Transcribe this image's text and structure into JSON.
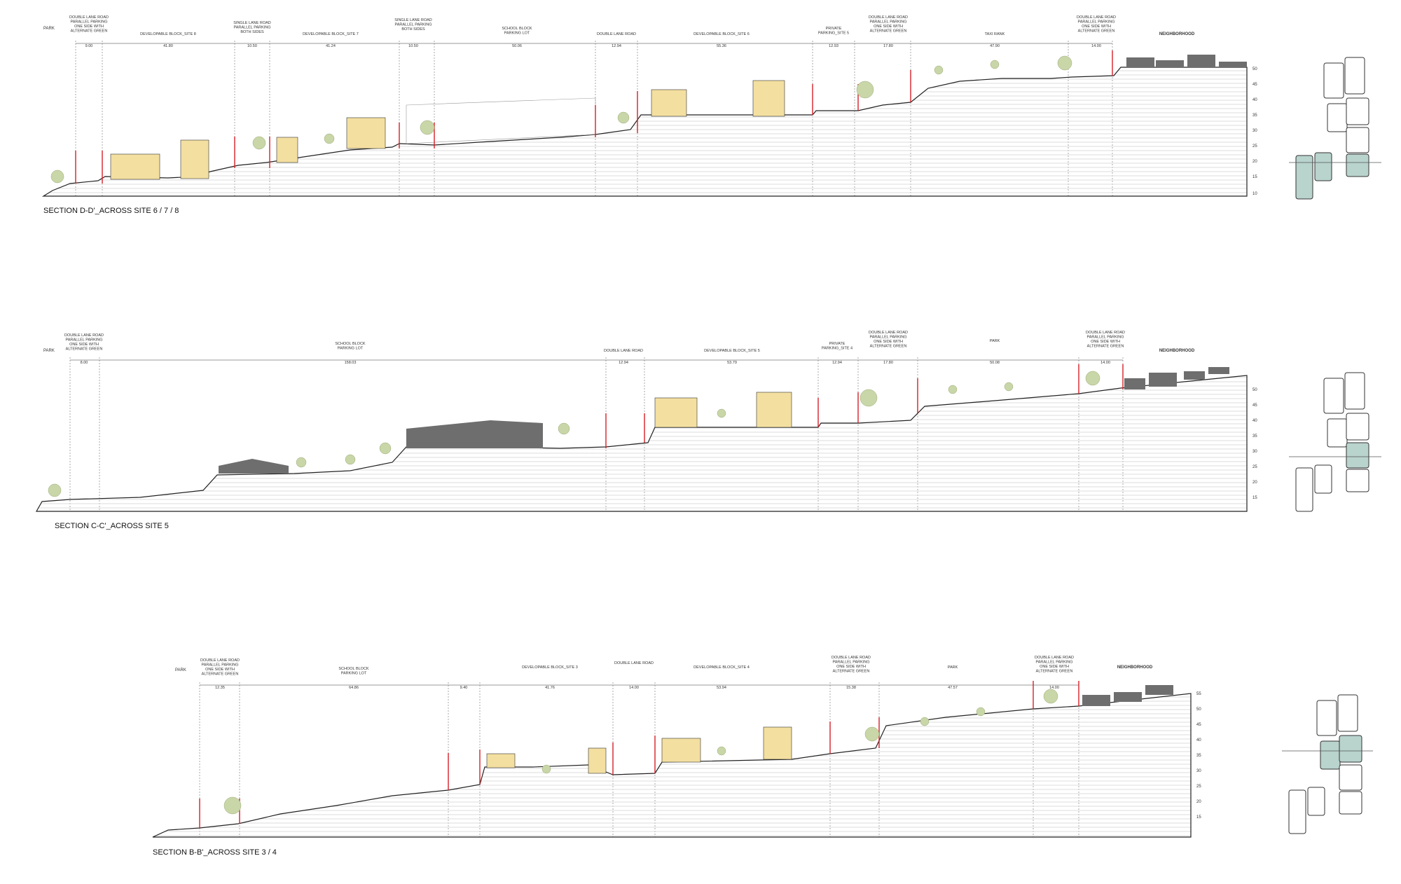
{
  "sections": [
    {
      "id": "D",
      "caption": "SECTION D-D'_ACROSS SITE 6 / 7 / 8",
      "top_labels": [
        {
          "text": "PARK"
        },
        {
          "text": "DOUBLE LANE ROAD\nPARALLEL PARKING\nONE SIDE WITH\nALTERNATE GREEN"
        },
        {
          "text": "DEVELOPABLE BLOCK_SITE 8"
        },
        {
          "text": "SINGLE LANE ROAD\nPARALLEL PARKING\nBOTH SIDES"
        },
        {
          "text": "DEVELOPABLE BLOCK_SITE 7"
        },
        {
          "text": "SINGLE LANE ROAD\nPARALLEL PARKING\nBOTH SIDES"
        },
        {
          "text": "SCHOOL BLOCK\nPARKING LOT"
        },
        {
          "text": "DOUBLE LANE ROAD"
        },
        {
          "text": "DEVELOPABLE BLOCK_SITE 6"
        },
        {
          "text": "PRIVATE\nPARKING_SITE 5"
        },
        {
          "text": "DOUBLE LANE ROAD\nPARALLEL PARKING\nONE SIDE WITH\nALTERNATE GREEN"
        },
        {
          "text": "TAXI RANK"
        },
        {
          "text": "DOUBLE LANE ROAD\nPARALLEL PARKING\nONE SIDE WITH\nALTERNATE GREEN"
        },
        {
          "text": "NEIGHBORHOOD"
        }
      ],
      "dimensions": [
        "9.00",
        "41.80",
        "10.50",
        "41.24",
        "10.50",
        "50.06",
        "12.94",
        "55.36",
        "12.93",
        "17.80",
        "47.90",
        "14.00"
      ],
      "scale_ticks": [
        "50",
        "45",
        "40",
        "35",
        "30",
        "25",
        "20",
        "15",
        "10"
      ]
    },
    {
      "id": "C",
      "caption": "SECTION C-C'_ACROSS SITE 5",
      "top_labels": [
        {
          "text": "PARK"
        },
        {
          "text": "DOUBLE LANE ROAD\nPARALLEL PARKING\nONE SIDE WITH\nALTERNATE GREEN"
        },
        {
          "text": "SCHOOL BLOCK\nPARKING LOT"
        },
        {
          "text": "DOUBLE LANE ROAD"
        },
        {
          "text": "DEVELOPABLE BLOCK_SITE 5"
        },
        {
          "text": "PRIVATE\nPARKING_SITE 4"
        },
        {
          "text": "DOUBLE LANE ROAD\nPARALLEL PARKING\nONE SIDE WITH\nALTERNATE GREEN"
        },
        {
          "text": "PARK"
        },
        {
          "text": "DOUBLE LANE ROAD\nPARALLEL PARKING\nONE SIDE WITH\nALTERNATE GREEN"
        },
        {
          "text": "NEIGHBORHOOD"
        }
      ],
      "dimensions": [
        "8.00",
        "158.03",
        "12.94",
        "53.79",
        "12.94",
        "17.80",
        "50.08",
        "14.00"
      ],
      "scale_ticks": [
        "50",
        "45",
        "40",
        "35",
        "30",
        "25",
        "20",
        "15"
      ]
    },
    {
      "id": "B",
      "caption": "SECTION B-B'_ACROSS SITE 3 / 4",
      "top_labels": [
        {
          "text": "PARK"
        },
        {
          "text": "DOUBLE LANE ROAD\nPARALLEL PARKING\nONE SIDE WITH\nALTERNATE GREEN"
        },
        {
          "text": "SCHOOL BLOCK\nPARKING LOT"
        },
        {
          "text": "DEVELOPABLE BLOCK_SITE 3"
        },
        {
          "text": "DOUBLE LANE ROAD"
        },
        {
          "text": "DEVELOPABLE BLOCK_SITE 4"
        },
        {
          "text": "DOUBLE LANE ROAD\nPARALLEL PARKING\nONE SIDE WITH\nALTERNATE GREEN"
        },
        {
          "text": "PARK"
        },
        {
          "text": "DOUBLE LANE ROAD\nPARALLEL PARKING\nONE SIDE WITH\nALTERNATE GREEN"
        },
        {
          "text": "NEIGHBORHOOD"
        }
      ],
      "dimensions": [
        "12.35",
        "64.86",
        "9.40",
        "41.76",
        "14.00",
        "53.94",
        "15.38",
        "47.57",
        "14.00"
      ],
      "scale_ticks": [
        "55",
        "50",
        "45",
        "40",
        "35",
        "30",
        "25",
        "20",
        "15"
      ]
    }
  ],
  "colors": {
    "ground_fill": "#f4f4f4",
    "hatch": "#d8d8d8",
    "building_fill": "#f3dfa0",
    "building_shade": "#e8c96a",
    "dark_roof": "#6e6e6e",
    "tree_green": "#c9d6a8",
    "tree_trunk": "#8a7a5a",
    "accent_red": "#d61f26",
    "dark_red": "#8a1a1a",
    "keymap_fill": "#b9d3cd",
    "line": "#222222"
  }
}
